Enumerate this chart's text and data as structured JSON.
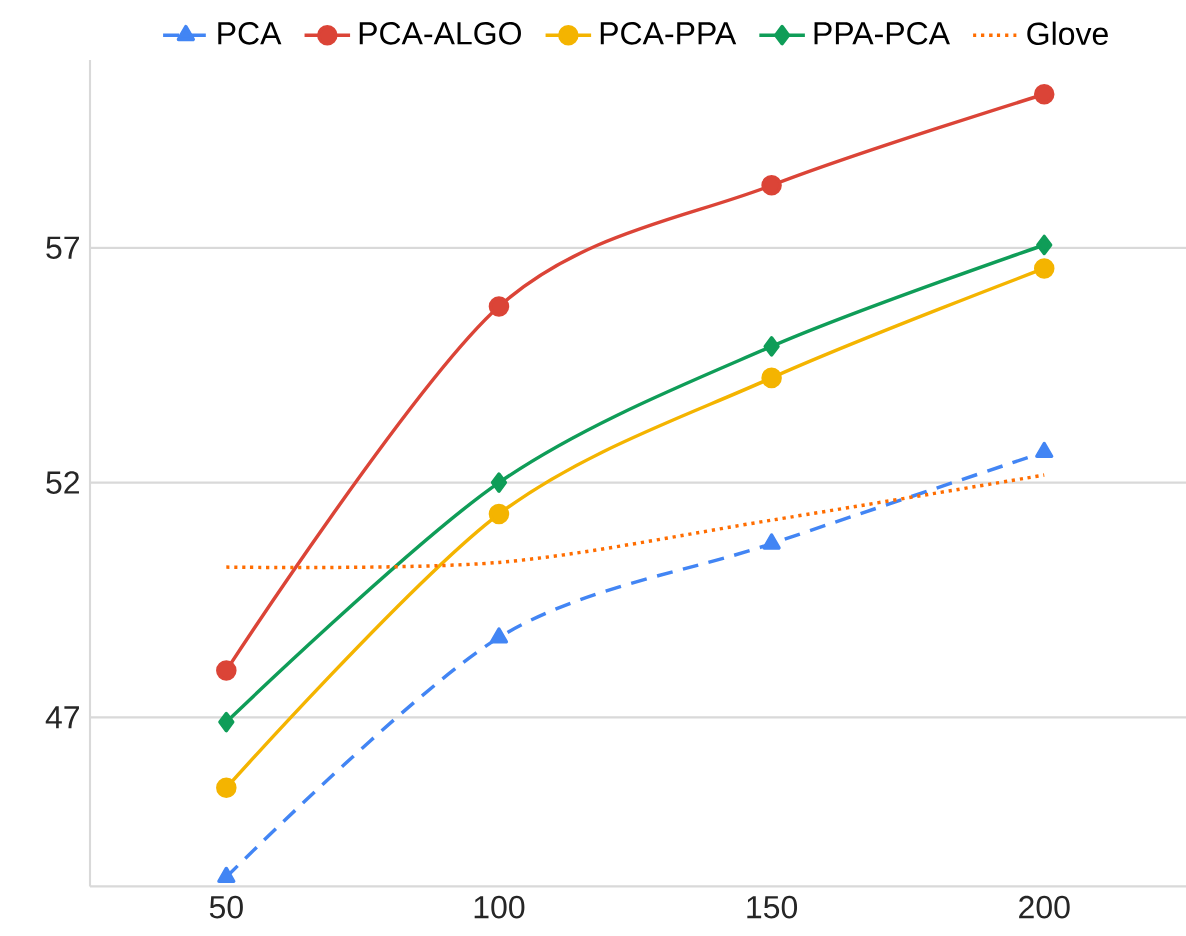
{
  "chart_data": {
    "type": "line",
    "x": [
      50,
      100,
      150,
      200
    ],
    "xlim": [
      25,
      226
    ],
    "xticks": [
      50,
      100,
      150,
      200
    ],
    "ylim": [
      43.4,
      61
    ],
    "yticks": [
      47,
      52,
      57
    ],
    "grid": "y",
    "legend": "top",
    "series": [
      {
        "name": "PCA",
        "color": "#4285f4",
        "marker": "triangle",
        "line_style": "dashed",
        "values": [
          43.6,
          48.7,
          50.7,
          52.65
        ]
      },
      {
        "name": "PCA-ALGO",
        "color": "#db4437",
        "marker": "circle",
        "line_style": "solid",
        "values": [
          48.0,
          55.75,
          58.33,
          60.27
        ]
      },
      {
        "name": "PCA-PPA",
        "color": "#f4b400",
        "marker": "circle",
        "line_style": "solid",
        "values": [
          45.5,
          51.33,
          54.23,
          56.56
        ]
      },
      {
        "name": "PPA-PCA",
        "color": "#0f9d58",
        "marker": "diamond",
        "line_style": "solid",
        "values": [
          46.9,
          52.0,
          54.9,
          57.06
        ]
      },
      {
        "name": "Glove",
        "color": "#ff6d00",
        "marker": "none",
        "line_style": "dotted",
        "values": [
          50.2,
          50.3,
          51.2,
          52.16
        ]
      }
    ]
  }
}
